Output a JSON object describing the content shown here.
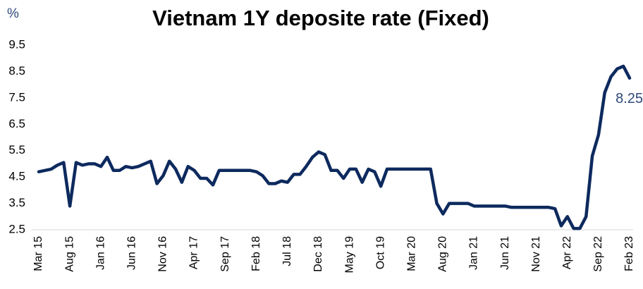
{
  "chart_data": {
    "type": "line",
    "title": "Vietnam 1Y deposite rate (Fixed)",
    "y_label": "%",
    "categories": [
      "Mar 15",
      null,
      null,
      null,
      null,
      "Aug 15",
      null,
      null,
      null,
      null,
      "Jan 16",
      null,
      null,
      null,
      null,
      "Jun 16",
      null,
      null,
      null,
      null,
      "Nov 16",
      null,
      null,
      null,
      null,
      "Apr 17",
      null,
      null,
      null,
      null,
      "Sep 17",
      null,
      null,
      null,
      null,
      "Feb 18",
      null,
      null,
      null,
      null,
      "Jul 18",
      null,
      null,
      null,
      null,
      "Dec 18",
      null,
      null,
      null,
      null,
      "May 19",
      null,
      null,
      null,
      null,
      "Oct 19",
      null,
      null,
      null,
      null,
      "Mar 20",
      null,
      null,
      null,
      null,
      "Aug 20",
      null,
      null,
      null,
      null,
      "Jan 21",
      null,
      null,
      null,
      null,
      "Jun 21",
      null,
      null,
      null,
      null,
      "Nov 21",
      null,
      null,
      null,
      null,
      "Apr 22",
      null,
      null,
      null,
      null,
      "Sep 22",
      null,
      null,
      null,
      null,
      "Feb 23"
    ],
    "series": [
      {
        "name": "Vietnam 1Y deposite rate",
        "color": "#0d2a5e",
        "values": [
          4.7,
          4.75,
          4.8,
          4.95,
          5.05,
          3.4,
          5.05,
          4.95,
          5.0,
          5.0,
          4.9,
          5.25,
          4.75,
          4.75,
          4.9,
          4.85,
          4.9,
          5.0,
          5.1,
          4.25,
          4.55,
          5.1,
          4.8,
          4.3,
          4.9,
          4.75,
          4.45,
          4.45,
          4.2,
          4.75,
          4.75,
          4.75,
          4.75,
          4.75,
          4.75,
          4.7,
          4.55,
          4.25,
          4.25,
          4.35,
          4.3,
          4.6,
          4.6,
          4.9,
          5.25,
          5.45,
          5.35,
          4.75,
          4.75,
          4.45,
          4.8,
          4.8,
          4.3,
          4.8,
          4.7,
          4.15,
          4.8,
          4.8,
          4.8,
          4.8,
          4.8,
          4.8,
          4.8,
          4.8,
          3.5,
          3.1,
          3.5,
          3.5,
          3.5,
          3.5,
          3.4,
          3.4,
          3.4,
          3.4,
          3.4,
          3.4,
          3.35,
          3.35,
          3.35,
          3.35,
          3.35,
          3.35,
          3.35,
          3.3,
          2.65,
          3.0,
          2.55,
          2.55,
          3.0,
          5.3,
          6.1,
          7.7,
          8.3,
          8.6,
          8.7,
          8.25
        ]
      }
    ],
    "ylim": [
      2.5,
      9.5
    ],
    "yticks": [
      2.5,
      3.5,
      4.5,
      5.5,
      6.5,
      7.5,
      8.5,
      9.5
    ],
    "grid": false,
    "label_color": "#2e4a7a"
  }
}
